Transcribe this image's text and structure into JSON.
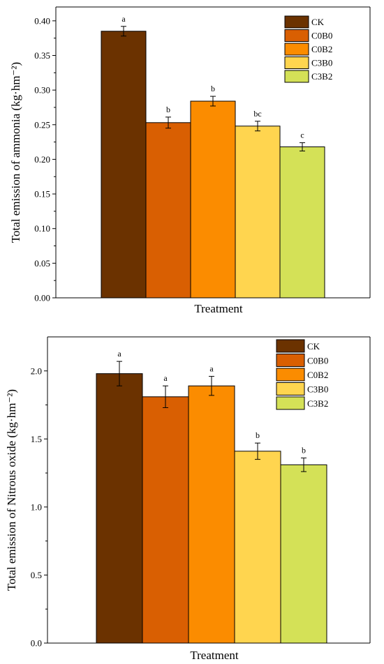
{
  "chart_data": [
    {
      "type": "bar",
      "categories": [
        "CK",
        "C0B0",
        "C0B2",
        "C3B0",
        "C3B2"
      ],
      "values": [
        0.385,
        0.253,
        0.284,
        0.248,
        0.218
      ],
      "errors": [
        0.007,
        0.008,
        0.007,
        0.007,
        0.006
      ],
      "significance": [
        "a",
        "b",
        "b",
        "bc",
        "c"
      ],
      "colors": [
        "#6b3200",
        "#d95f02",
        "#fb8c00",
        "#ffd54f",
        "#d4e157"
      ],
      "ylabel": "Total emission of ammonia (kg·hm⁻²)",
      "xlabel": "Treatment",
      "ylim": [
        0.0,
        0.42
      ],
      "yticks": [
        "0.00",
        "0.05",
        "0.10",
        "0.15",
        "0.20",
        "0.25",
        "0.30",
        "0.35",
        "0.40"
      ],
      "legend": [
        "CK",
        "C0B0",
        "C0B2",
        "C3B0",
        "C3B2"
      ],
      "legend_position": "top-right",
      "grid": false
    },
    {
      "type": "bar",
      "categories": [
        "CK",
        "C0B0",
        "C0B2",
        "C3B0",
        "C3B2"
      ],
      "values": [
        1.98,
        1.81,
        1.89,
        1.41,
        1.31
      ],
      "errors": [
        0.09,
        0.08,
        0.07,
        0.06,
        0.05
      ],
      "significance": [
        "a",
        "a",
        "a",
        "b",
        "b"
      ],
      "colors": [
        "#6b3200",
        "#d95f02",
        "#fb8c00",
        "#ffd54f",
        "#d4e157"
      ],
      "ylabel": "Total emission of Nitrous oxide (kg·hm⁻²)",
      "xlabel": "Treatment",
      "ylim": [
        0.0,
        2.25
      ],
      "yticks": [
        "0.0",
        "0.5",
        "1.0",
        "1.5",
        "2.0"
      ],
      "legend": [
        "CK",
        "C0B0",
        "C0B2",
        "C3B0",
        "C3B2"
      ],
      "legend_position": "top-right",
      "grid": false
    }
  ]
}
